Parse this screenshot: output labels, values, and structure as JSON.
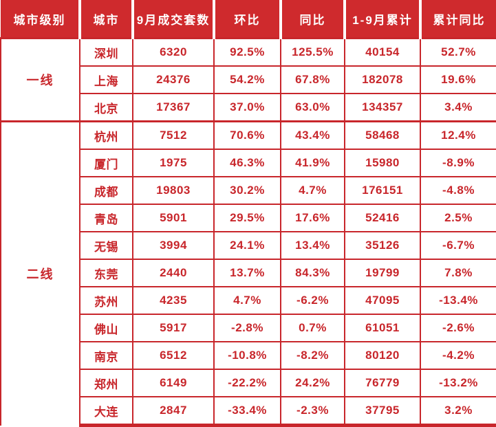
{
  "colors": {
    "accent_red": "#c8262b",
    "header_background": "#cf2a2d",
    "header_text": "#ffffff",
    "cell_background": "#ffffff"
  },
  "table": {
    "headers": [
      "城市级别",
      "城市",
      "9月成交套数",
      "环比",
      "同比",
      "1-9月累计",
      "累计同比"
    ],
    "groups": [
      {
        "tier": "一线",
        "rows": [
          [
            "深圳",
            "6320",
            "92.5%",
            "125.5%",
            "40154",
            "52.7%"
          ],
          [
            "上海",
            "24376",
            "54.2%",
            "67.8%",
            "182078",
            "19.6%"
          ],
          [
            "北京",
            "17367",
            "37.0%",
            "63.0%",
            "134357",
            "3.4%"
          ]
        ]
      },
      {
        "tier": "二线",
        "rows": [
          [
            "杭州",
            "7512",
            "70.6%",
            "43.4%",
            "58468",
            "12.4%"
          ],
          [
            "厦门",
            "1975",
            "46.3%",
            "41.9%",
            "15980",
            "-8.9%"
          ],
          [
            "成都",
            "19803",
            "30.2%",
            "4.7%",
            "176151",
            "-4.8%"
          ],
          [
            "青岛",
            "5901",
            "29.5%",
            "17.6%",
            "52416",
            "2.5%"
          ],
          [
            "无锡",
            "3994",
            "24.1%",
            "13.4%",
            "35126",
            "-6.7%"
          ],
          [
            "东莞",
            "2440",
            "13.7%",
            "84.3%",
            "19799",
            "7.8%"
          ],
          [
            "苏州",
            "4235",
            "4.7%",
            "-6.2%",
            "47095",
            "-13.4%"
          ],
          [
            "佛山",
            "5917",
            "-2.8%",
            "0.7%",
            "61051",
            "-2.6%"
          ],
          [
            "南京",
            "6512",
            "-10.8%",
            "-8.2%",
            "80120",
            "-4.2%"
          ],
          [
            "郑州",
            "6149",
            "-22.2%",
            "24.2%",
            "76779",
            "-13.2%"
          ],
          [
            "大连",
            "2847",
            "-33.4%",
            "-2.3%",
            "37795",
            "3.2%"
          ]
        ]
      }
    ]
  }
}
